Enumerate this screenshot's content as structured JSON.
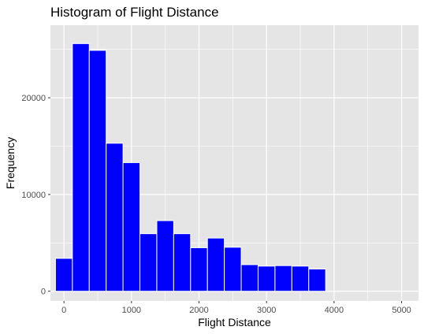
{
  "chart_data": {
    "type": "bar",
    "title": "Histogram of Flight Distance",
    "xlabel": "Flight Distance",
    "ylabel": "Frequency",
    "xlim": [
      -200,
      5250
    ],
    "ylim": [
      -1000,
      27500
    ],
    "x_ticks": [
      0,
      1000,
      2000,
      3000,
      4000,
      5000
    ],
    "y_ticks": [
      0,
      10000,
      20000
    ],
    "grid": true,
    "bin_width": 250,
    "bins": [
      {
        "start": -125,
        "count": 3400
      },
      {
        "start": 125,
        "count": 25600
      },
      {
        "start": 375,
        "count": 24900
      },
      {
        "start": 625,
        "count": 15300
      },
      {
        "start": 875,
        "count": 13300
      },
      {
        "start": 1125,
        "count": 5950
      },
      {
        "start": 1375,
        "count": 7300
      },
      {
        "start": 1625,
        "count": 5950
      },
      {
        "start": 1875,
        "count": 4500
      },
      {
        "start": 2125,
        "count": 5500
      },
      {
        "start": 2375,
        "count": 4550
      },
      {
        "start": 2625,
        "count": 2750
      },
      {
        "start": 2875,
        "count": 2600
      },
      {
        "start": 3125,
        "count": 2650
      },
      {
        "start": 3375,
        "count": 2600
      },
      {
        "start": 3625,
        "count": 2300
      }
    ],
    "colors": {
      "panel": "#e5e5e5",
      "grid": "#ffffff",
      "bar_fill": "#0000ff",
      "bar_stroke": "#ffffff"
    }
  }
}
